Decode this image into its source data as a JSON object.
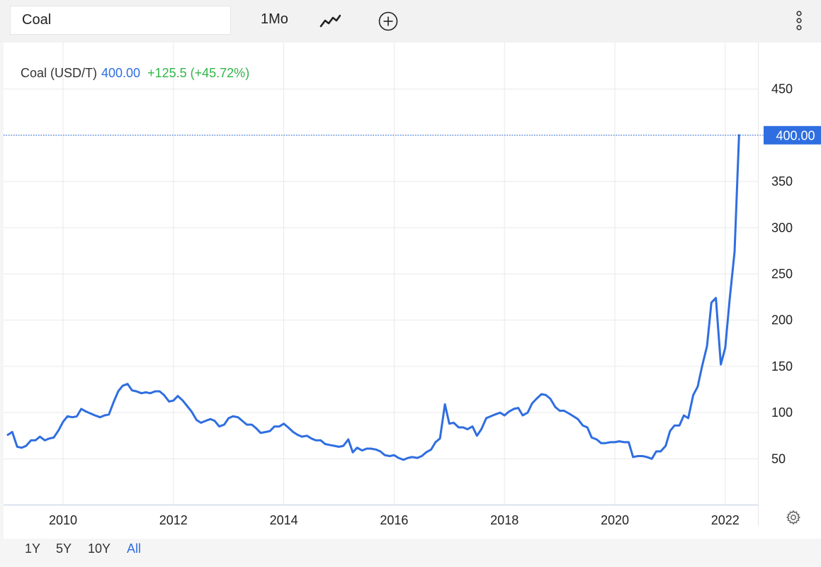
{
  "toolbar": {
    "symbol": "Coal",
    "period_label": "1Mo"
  },
  "legend": {
    "name": "Coal (USD/T)",
    "price": "400.00",
    "change": "+125.5 (+45.72%)"
  },
  "last_price_label": "400.00",
  "range_buttons": [
    "1Y",
    "5Y",
    "10Y",
    "All"
  ],
  "active_range": "All",
  "colors": {
    "line": "#2f6ee0",
    "price_tag": "#2f6ee0",
    "change_up": "#33b54a",
    "grid": "#e9e9e9"
  },
  "chart_data": {
    "type": "line",
    "title": "",
    "xlabel": "",
    "ylabel": "",
    "x_ticks": [
      "2010",
      "2012",
      "2014",
      "2016",
      "2018",
      "2020",
      "2022"
    ],
    "y_ticks": [
      50,
      100,
      150,
      200,
      250,
      300,
      350,
      450
    ],
    "ylim": [
      0,
      490
    ],
    "xlim": [
      2009.0,
      2023.35
    ],
    "grid": true,
    "series": [
      {
        "points": [
          [
            2009.0,
            76
          ],
          [
            2009.08,
            79
          ],
          [
            2009.17,
            63
          ],
          [
            2009.25,
            62
          ],
          [
            2009.33,
            64
          ],
          [
            2009.42,
            70
          ],
          [
            2009.5,
            70
          ],
          [
            2009.58,
            74
          ],
          [
            2009.67,
            70
          ],
          [
            2009.75,
            72
          ],
          [
            2009.83,
            73
          ],
          [
            2009.92,
            81
          ],
          [
            2010.0,
            90
          ],
          [
            2010.08,
            96
          ],
          [
            2010.17,
            95
          ],
          [
            2010.25,
            96
          ],
          [
            2010.33,
            104
          ],
          [
            2010.42,
            101
          ],
          [
            2010.5,
            99
          ],
          [
            2010.58,
            97
          ],
          [
            2010.67,
            95
          ],
          [
            2010.75,
            97
          ],
          [
            2010.83,
            98
          ],
          [
            2010.92,
            112
          ],
          [
            2011.0,
            123
          ],
          [
            2011.08,
            129
          ],
          [
            2011.17,
            131
          ],
          [
            2011.25,
            124
          ],
          [
            2011.33,
            123
          ],
          [
            2011.42,
            121
          ],
          [
            2011.5,
            122
          ],
          [
            2011.58,
            121
          ],
          [
            2011.67,
            123
          ],
          [
            2011.75,
            123
          ],
          [
            2011.83,
            119
          ],
          [
            2011.92,
            112
          ],
          [
            2012.0,
            113
          ],
          [
            2012.08,
            118
          ],
          [
            2012.17,
            113
          ],
          [
            2012.25,
            107
          ],
          [
            2012.33,
            101
          ],
          [
            2012.42,
            92
          ],
          [
            2012.5,
            89
          ],
          [
            2012.58,
            91
          ],
          [
            2012.67,
            93
          ],
          [
            2012.75,
            91
          ],
          [
            2012.83,
            85
          ],
          [
            2012.92,
            87
          ],
          [
            2013.0,
            94
          ],
          [
            2013.08,
            96
          ],
          [
            2013.17,
            95
          ],
          [
            2013.25,
            91
          ],
          [
            2013.33,
            87
          ],
          [
            2013.42,
            87
          ],
          [
            2013.5,
            83
          ],
          [
            2013.58,
            78
          ],
          [
            2013.67,
            79
          ],
          [
            2013.75,
            80
          ],
          [
            2013.83,
            85
          ],
          [
            2013.92,
            85
          ],
          [
            2014.0,
            88
          ],
          [
            2014.08,
            84
          ],
          [
            2014.17,
            79
          ],
          [
            2014.25,
            76
          ],
          [
            2014.33,
            74
          ],
          [
            2014.42,
            75
          ],
          [
            2014.5,
            72
          ],
          [
            2014.58,
            70
          ],
          [
            2014.67,
            70
          ],
          [
            2014.75,
            66
          ],
          [
            2014.83,
            65
          ],
          [
            2014.92,
            64
          ],
          [
            2015.0,
            63
          ],
          [
            2015.08,
            64
          ],
          [
            2015.17,
            71
          ],
          [
            2015.25,
            57
          ],
          [
            2015.33,
            62
          ],
          [
            2015.42,
            59
          ],
          [
            2015.5,
            61
          ],
          [
            2015.58,
            61
          ],
          [
            2015.67,
            60
          ],
          [
            2015.75,
            58
          ],
          [
            2015.83,
            54
          ],
          [
            2015.92,
            53
          ],
          [
            2016.0,
            54
          ],
          [
            2016.08,
            51
          ],
          [
            2016.17,
            49
          ],
          [
            2016.25,
            51
          ],
          [
            2016.33,
            52
          ],
          [
            2016.42,
            51
          ],
          [
            2016.5,
            53
          ],
          [
            2016.58,
            57
          ],
          [
            2016.67,
            60
          ],
          [
            2016.75,
            68
          ],
          [
            2016.83,
            72
          ],
          [
            2016.92,
            109
          ],
          [
            2017.0,
            88
          ],
          [
            2017.08,
            89
          ],
          [
            2017.17,
            84
          ],
          [
            2017.25,
            84
          ],
          [
            2017.33,
            82
          ],
          [
            2017.42,
            85
          ],
          [
            2017.5,
            75
          ],
          [
            2017.58,
            82
          ],
          [
            2017.67,
            94
          ],
          [
            2017.75,
            96
          ],
          [
            2017.83,
            98
          ],
          [
            2017.92,
            100
          ],
          [
            2018.0,
            97
          ],
          [
            2018.08,
            101
          ],
          [
            2018.17,
            104
          ],
          [
            2018.25,
            105
          ],
          [
            2018.33,
            97
          ],
          [
            2018.42,
            100
          ],
          [
            2018.5,
            110
          ],
          [
            2018.58,
            115
          ],
          [
            2018.67,
            120
          ],
          [
            2018.75,
            119
          ],
          [
            2018.83,
            115
          ],
          [
            2018.92,
            106
          ],
          [
            2019.0,
            102
          ],
          [
            2019.08,
            102
          ],
          [
            2019.17,
            99
          ],
          [
            2019.25,
            96
          ],
          [
            2019.33,
            93
          ],
          [
            2019.42,
            86
          ],
          [
            2019.5,
            84
          ],
          [
            2019.58,
            73
          ],
          [
            2019.67,
            71
          ],
          [
            2019.75,
            67
          ],
          [
            2019.83,
            67
          ],
          [
            2019.92,
            68
          ],
          [
            2020.0,
            68
          ],
          [
            2020.08,
            69
          ],
          [
            2020.17,
            68
          ],
          [
            2020.25,
            68
          ],
          [
            2020.33,
            52
          ],
          [
            2020.42,
            53
          ],
          [
            2020.5,
            53
          ],
          [
            2020.58,
            52
          ],
          [
            2020.67,
            50
          ],
          [
            2020.75,
            58
          ],
          [
            2020.83,
            58
          ],
          [
            2020.92,
            64
          ],
          [
            2021.0,
            80
          ],
          [
            2021.08,
            86
          ],
          [
            2021.17,
            86
          ],
          [
            2021.25,
            97
          ],
          [
            2021.33,
            94
          ],
          [
            2021.42,
            119
          ],
          [
            2021.5,
            128
          ],
          [
            2021.58,
            150
          ],
          [
            2021.67,
            172
          ],
          [
            2021.75,
            219
          ],
          [
            2021.83,
            224
          ],
          [
            2021.92,
            152
          ],
          [
            2022.0,
            170
          ],
          [
            2022.08,
            222
          ],
          [
            2022.17,
            274
          ],
          [
            2022.25,
            400
          ]
        ]
      }
    ]
  }
}
